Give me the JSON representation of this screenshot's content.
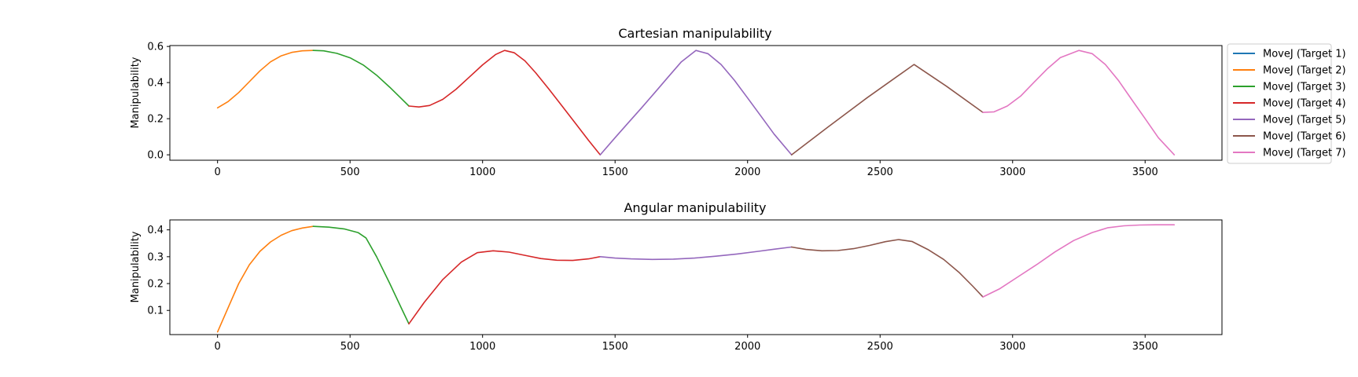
{
  "chart_data": [
    {
      "type": "line",
      "title": "Cartesian manipulability",
      "xlabel": "",
      "ylabel": "Manipulability",
      "xlim": [
        -180,
        3790
      ],
      "ylim": [
        -0.03,
        0.605
      ],
      "xticks": [
        0,
        500,
        1000,
        1500,
        2000,
        2500,
        3000,
        3500
      ],
      "yticks": [
        0.0,
        0.2,
        0.4,
        0.6
      ],
      "ytick_labels": [
        "0.0",
        "0.2",
        "0.4",
        "0.6"
      ],
      "legend": "outside-right",
      "series": [
        {
          "name": "MoveJ (Target 1)",
          "color": "#1f77b4",
          "x": [
            0
          ],
          "y": [
            0.26
          ]
        },
        {
          "name": "MoveJ (Target 2)",
          "color": "#ff7f0e",
          "x": [
            0,
            40,
            80,
            120,
            160,
            200,
            240,
            280,
            320,
            361
          ],
          "y": [
            0.26,
            0.295,
            0.345,
            0.405,
            0.465,
            0.515,
            0.548,
            0.567,
            0.576,
            0.578
          ]
        },
        {
          "name": "MoveJ (Target 3)",
          "color": "#2ca02c",
          "x": [
            361,
            400,
            450,
            500,
            550,
            600,
            650,
            700,
            722
          ],
          "y": [
            0.578,
            0.576,
            0.562,
            0.537,
            0.497,
            0.441,
            0.374,
            0.302,
            0.27
          ]
        },
        {
          "name": "MoveJ (Target 4)",
          "color": "#d62728",
          "x": [
            722,
            760,
            800,
            850,
            900,
            950,
            1000,
            1050,
            1083,
            1120,
            1160,
            1200,
            1250,
            1300,
            1350,
            1400,
            1444
          ],
          "y": [
            0.27,
            0.265,
            0.273,
            0.307,
            0.363,
            0.43,
            0.498,
            0.556,
            0.578,
            0.565,
            0.52,
            0.455,
            0.365,
            0.27,
            0.175,
            0.08,
            0.0
          ]
        },
        {
          "name": "MoveJ (Target 5)",
          "color": "#9467bd",
          "x": [
            1444,
            1500,
            1550,
            1600,
            1650,
            1700,
            1750,
            1805,
            1850,
            1900,
            1950,
            2000,
            2050,
            2100,
            2166
          ],
          "y": [
            0.0,
            0.095,
            0.178,
            0.26,
            0.345,
            0.43,
            0.515,
            0.578,
            0.56,
            0.5,
            0.413,
            0.315,
            0.215,
            0.115,
            0.0
          ]
        },
        {
          "name": "MoveJ (Target 6)",
          "color": "#8c564b",
          "x": [
            2166,
            2300,
            2450,
            2628,
            2750,
            2888
          ],
          "y": [
            0.0,
            0.15,
            0.315,
            0.5,
            0.38,
            0.235
          ]
        },
        {
          "name": "MoveJ (Target 7)",
          "color": "#e377c2",
          "x": [
            2888,
            2930,
            2980,
            3030,
            3080,
            3130,
            3180,
            3250,
            3300,
            3350,
            3400,
            3450,
            3500,
            3550,
            3610
          ],
          "y": [
            0.235,
            0.238,
            0.27,
            0.325,
            0.4,
            0.475,
            0.538,
            0.578,
            0.56,
            0.5,
            0.41,
            0.305,
            0.2,
            0.095,
            0.0
          ]
        }
      ]
    },
    {
      "type": "line",
      "title": "Angular manipulability",
      "xlabel": "",
      "ylabel": "Manipulability",
      "xlim": [
        -180,
        3790
      ],
      "ylim": [
        0.01,
        0.437
      ],
      "xticks": [
        0,
        500,
        1000,
        1500,
        2000,
        2500,
        3000,
        3500
      ],
      "yticks": [
        0.1,
        0.2,
        0.3,
        0.4
      ],
      "ytick_labels": [
        "0.1",
        "0.2",
        "0.3",
        "0.4"
      ],
      "series": [
        {
          "name": "MoveJ (Target 1)",
          "color": "#1f77b4",
          "x": [
            0
          ],
          "y": [
            0.02
          ]
        },
        {
          "name": "MoveJ (Target 2)",
          "color": "#ff7f0e",
          "x": [
            0,
            40,
            80,
            120,
            160,
            200,
            240,
            280,
            320,
            361
          ],
          "y": [
            0.02,
            0.11,
            0.2,
            0.27,
            0.32,
            0.355,
            0.38,
            0.397,
            0.407,
            0.413
          ]
        },
        {
          "name": "MoveJ (Target 3)",
          "color": "#2ca02c",
          "x": [
            361,
            420,
            480,
            530,
            560,
            600,
            650,
            700,
            722
          ],
          "y": [
            0.413,
            0.41,
            0.403,
            0.39,
            0.37,
            0.3,
            0.2,
            0.095,
            0.05
          ]
        },
        {
          "name": "MoveJ (Target 4)",
          "color": "#d62728",
          "x": [
            722,
            780,
            850,
            920,
            980,
            1040,
            1100,
            1160,
            1220,
            1280,
            1340,
            1400,
            1444
          ],
          "y": [
            0.05,
            0.13,
            0.215,
            0.28,
            0.315,
            0.322,
            0.317,
            0.305,
            0.293,
            0.287,
            0.286,
            0.292,
            0.3
          ]
        },
        {
          "name": "MoveJ (Target 5)",
          "color": "#9467bd",
          "x": [
            1444,
            1500,
            1560,
            1640,
            1720,
            1800,
            1880,
            1960,
            2040,
            2100,
            2166
          ],
          "y": [
            0.3,
            0.295,
            0.292,
            0.29,
            0.291,
            0.295,
            0.302,
            0.31,
            0.32,
            0.328,
            0.336
          ]
        },
        {
          "name": "MoveJ (Target 6)",
          "color": "#8c564b",
          "x": [
            2166,
            2220,
            2280,
            2340,
            2400,
            2460,
            2520,
            2570,
            2620,
            2680,
            2740,
            2800,
            2850,
            2888
          ],
          "y": [
            0.336,
            0.327,
            0.322,
            0.323,
            0.33,
            0.342,
            0.356,
            0.364,
            0.357,
            0.327,
            0.29,
            0.24,
            0.19,
            0.15
          ]
        },
        {
          "name": "MoveJ (Target 7)",
          "color": "#e377c2",
          "x": [
            2888,
            2950,
            3020,
            3090,
            3160,
            3230,
            3300,
            3360,
            3420,
            3480,
            3540,
            3610
          ],
          "y": [
            0.15,
            0.18,
            0.225,
            0.27,
            0.318,
            0.36,
            0.39,
            0.408,
            0.415,
            0.418,
            0.419,
            0.419
          ]
        }
      ]
    }
  ]
}
